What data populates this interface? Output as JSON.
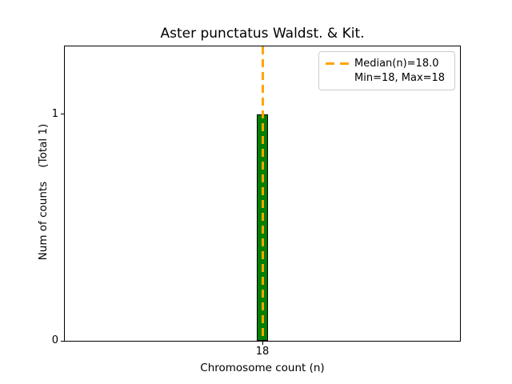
{
  "chart_data": {
    "type": "bar",
    "title": "Aster punctatus Waldst. & Kit.",
    "xlabel": "Chromosome count (n)",
    "ylabel": "Num of counts    (Total 1)",
    "x": [
      18
    ],
    "values": [
      1
    ],
    "bar_width_units": 0.03,
    "xlim": [
      17.5,
      18.5
    ],
    "ylim": [
      0,
      1.3
    ],
    "xticks": [
      18
    ],
    "yticks": [
      0,
      1
    ],
    "median": 18.0,
    "min": 18,
    "max": 18,
    "total": 1,
    "legend": {
      "position": "upper right",
      "entries": [
        "Median(n)=18.0",
        "Min=18, Max=18"
      ]
    },
    "grid": false,
    "colors": {
      "bar_fill": "#008000",
      "bar_edge": "#000000",
      "median_line": "#FFA500",
      "legend_border": "#cccccc",
      "text": "#000000",
      "background": "#ffffff"
    }
  }
}
